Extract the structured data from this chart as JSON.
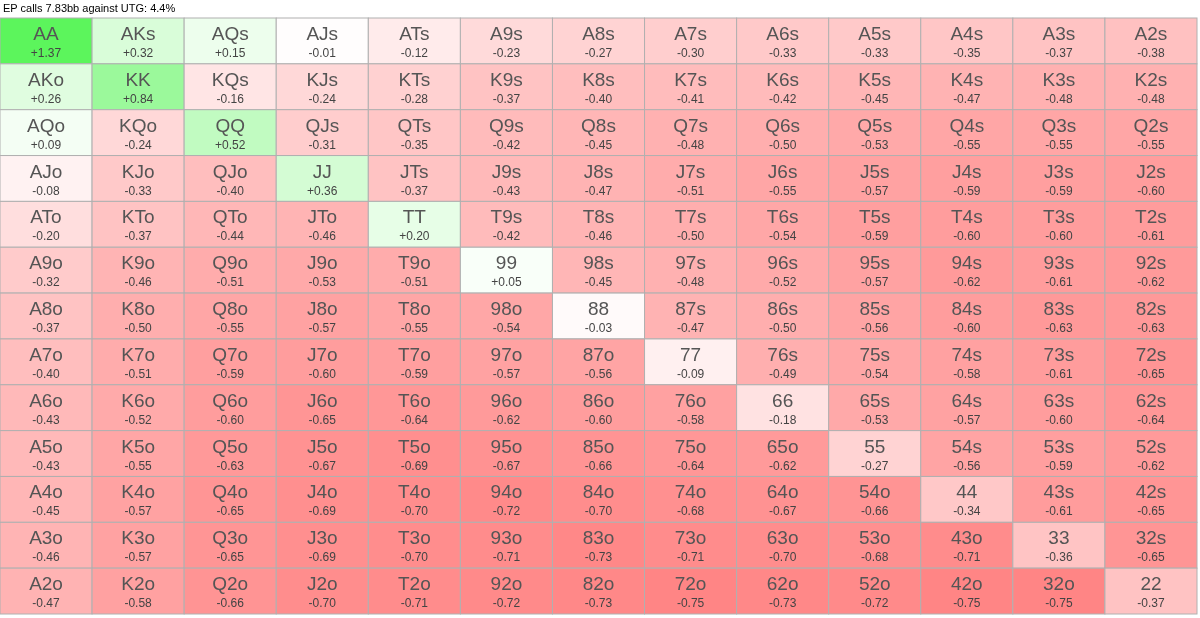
{
  "chart_data": {
    "type": "heatmap",
    "title": "EP calls 7.83bb against UTG: 4.4%",
    "categories": [
      null,
      null,
      null,
      null,
      null,
      null,
      null,
      null,
      null,
      null,
      null,
      null,
      null
    ],
    "y_categories": [
      null,
      null,
      null,
      null,
      null,
      null,
      null,
      null,
      null,
      null,
      null,
      null,
      null
    ],
    "cells": [
      [
        1.37,
        0.32,
        0.15,
        -0.01,
        -0.12,
        -0.23,
        -0.27,
        -0.3,
        -0.33,
        -0.33,
        -0.35,
        -0.37,
        -0.38
      ],
      [
        0.26,
        0.84,
        -0.16,
        -0.24,
        -0.28,
        -0.37,
        -0.4,
        -0.41,
        -0.42,
        -0.45,
        -0.47,
        -0.48,
        -0.48
      ],
      [
        0.09,
        -0.24,
        0.52,
        -0.31,
        -0.35,
        -0.42,
        -0.45,
        -0.48,
        -0.5,
        -0.53,
        -0.55,
        -0.55,
        -0.55
      ],
      [
        -0.08,
        -0.33,
        -0.4,
        0.36,
        -0.37,
        -0.43,
        -0.47,
        -0.51,
        -0.55,
        -0.57,
        -0.59,
        -0.59,
        -0.6
      ],
      [
        -0.2,
        -0.37,
        -0.44,
        -0.46,
        0.2,
        -0.42,
        -0.46,
        -0.5,
        -0.54,
        -0.59,
        -0.6,
        -0.6,
        -0.61
      ],
      [
        -0.32,
        -0.46,
        -0.51,
        -0.53,
        -0.51,
        0.05,
        -0.45,
        -0.48,
        -0.52,
        -0.57,
        -0.62,
        -0.61,
        -0.62
      ],
      [
        -0.37,
        -0.5,
        -0.55,
        -0.57,
        -0.55,
        -0.54,
        -0.03,
        -0.47,
        -0.5,
        -0.56,
        -0.6,
        -0.63,
        -0.63
      ],
      [
        -0.4,
        -0.51,
        -0.59,
        -0.6,
        -0.59,
        -0.57,
        -0.56,
        -0.09,
        -0.49,
        -0.54,
        -0.58,
        -0.61,
        -0.65
      ],
      [
        -0.43,
        -0.52,
        -0.6,
        -0.65,
        -0.64,
        -0.62,
        -0.6,
        -0.58,
        -0.18,
        -0.53,
        -0.57,
        -0.6,
        -0.64
      ],
      [
        -0.43,
        -0.55,
        -0.63,
        -0.67,
        -0.69,
        -0.67,
        -0.66,
        -0.64,
        -0.62,
        -0.27,
        -0.56,
        -0.59,
        -0.62
      ],
      [
        -0.45,
        -0.57,
        -0.65,
        -0.69,
        -0.7,
        -0.72,
        -0.7,
        -0.68,
        -0.67,
        -0.66,
        -0.34,
        -0.61,
        -0.65
      ],
      [
        -0.46,
        -0.57,
        -0.65,
        -0.69,
        -0.7,
        -0.71,
        -0.73,
        -0.71,
        -0.7,
        -0.68,
        -0.71,
        -0.36,
        -0.65
      ],
      [
        -0.47,
        -0.58,
        -0.66,
        -0.7,
        -0.71,
        -0.72,
        -0.73,
        -0.75,
        -0.73,
        -0.72,
        -0.75,
        -0.75,
        -0.37
      ]
    ],
    "cell_labels": [
      [
        "+1.37",
        "+0.32",
        "+0.15",
        "-0.01",
        "-0.12",
        "-0.23",
        "-0.27",
        "-0.30",
        "-0.33",
        "-0.33",
        "-0.35",
        "-0.37",
        "-0.38"
      ],
      [
        "+0.26",
        "+0.84",
        "-0.16",
        "-0.24",
        "-0.28",
        "-0.37",
        "-0.40",
        "-0.41",
        "-0.42",
        "-0.45",
        "-0.47",
        "-0.48",
        "-0.48"
      ],
      [
        "+0.09",
        "-0.24",
        "+0.52",
        "-0.31",
        "-0.35",
        "-0.42",
        "-0.45",
        "-0.48",
        "-0.50",
        "-0.53",
        "-0.55",
        "-0.55",
        "-0.55"
      ],
      [
        "-0.08",
        "-0.33",
        "-0.40",
        "+0.36",
        "-0.37",
        "-0.43",
        "-0.47",
        "-0.51",
        "-0.55",
        "-0.57",
        "-0.59",
        "-0.59",
        "-0.60"
      ],
      [
        "-0.20",
        "-0.37",
        "-0.44",
        "-0.46",
        "+0.20",
        "-0.42",
        "-0.46",
        "-0.50",
        "-0.54",
        "-0.59",
        "-0.60",
        "-0.60",
        "-0.61"
      ],
      [
        "-0.32",
        "-0.46",
        "-0.51",
        "-0.53",
        "-0.51",
        "+0.05",
        "-0.45",
        "-0.48",
        "-0.52",
        "-0.57",
        "-0.62",
        "-0.61",
        "-0.62"
      ],
      [
        "-0.37",
        "-0.50",
        "-0.55",
        "-0.57",
        "-0.55",
        "-0.54",
        "-0.03",
        "-0.47",
        "-0.50",
        "-0.56",
        "-0.60",
        "-0.63",
        "-0.63"
      ],
      [
        "-0.40",
        "-0.51",
        "-0.59",
        "-0.60",
        "-0.59",
        "-0.57",
        "-0.56",
        "-0.09",
        "-0.49",
        "-0.54",
        "-0.58",
        "-0.61",
        "-0.65"
      ],
      [
        "-0.43",
        "-0.52",
        "-0.60",
        "-0.65",
        "-0.64",
        "-0.62",
        "-0.60",
        "-0.58",
        "-0.18",
        "-0.53",
        "-0.57",
        "-0.60",
        "-0.64"
      ],
      [
        "-0.43",
        "-0.55",
        "-0.63",
        "-0.67",
        "-0.69",
        "-0.67",
        "-0.66",
        "-0.64",
        "-0.62",
        "-0.27",
        "-0.56",
        "-0.59",
        "-0.62"
      ],
      [
        "-0.45",
        "-0.57",
        "-0.65",
        "-0.69",
        "-0.70",
        "-0.72",
        "-0.70",
        "-0.68",
        "-0.67",
        "-0.66",
        "-0.34",
        "-0.61",
        "-0.65"
      ],
      [
        "-0.46",
        "-0.57",
        "-0.65",
        "-0.69",
        "-0.70",
        "-0.71",
        "-0.73",
        "-0.71",
        "-0.70",
        "-0.68",
        "-0.71",
        "-0.36",
        "-0.65"
      ],
      [
        "-0.47",
        "-0.58",
        "-0.66",
        "-0.70",
        "-0.71",
        "-0.72",
        "-0.73",
        "-0.75",
        "-0.73",
        "-0.72",
        "-0.75",
        "-0.75",
        "-0.37"
      ]
    ],
    "annotations": [
      "AA",
      "AKs",
      "AQs",
      "AJs",
      "ATs",
      "A9s",
      "A8s",
      "A7s",
      "A6s",
      "A5s",
      "A4s",
      "A3s",
      "A2s",
      "AKo",
      "KK",
      "KQs",
      "KJs",
      "KTs",
      "K9s",
      "K8s",
      "K7s",
      "K6s",
      "K5s",
      "K4s",
      "K3s",
      "K2s",
      "AQo",
      "KQo",
      "QQ",
      "QJs",
      "QTs",
      "Q9s",
      "Q8s",
      "Q7s",
      "Q6s",
      "Q5s",
      "Q4s",
      "Q3s",
      "Q2s",
      "AJo",
      "KJo",
      "QJo",
      "JJ",
      "JTs",
      "J9s",
      "J8s",
      "J7s",
      "J6s",
      "J5s",
      "J4s",
      "J3s",
      "J2s",
      "ATo",
      "KTo",
      "QTo",
      "JTo",
      "TT",
      "T9s",
      "T8s",
      "T7s",
      "T6s",
      "T5s",
      "T4s",
      "T3s",
      "T2s",
      "A9o",
      "K9o",
      "Q9o",
      "J9o",
      "T9o",
      "99",
      "98s",
      "97s",
      "96s",
      "95s",
      "94s",
      "93s",
      "92s",
      "A8o",
      "K8o",
      "Q8o",
      "J8o",
      "T8o",
      "98o",
      "88",
      "87s",
      "86s",
      "85s",
      "84s",
      "83s",
      "82s",
      "A7o",
      "K7o",
      "Q7o",
      "J7o",
      "T7o",
      "97o",
      "87o",
      "77",
      "76s",
      "75s",
      "74s",
      "73s",
      "72s",
      "A6o",
      "K6o",
      "Q6o",
      "J6o",
      "T6o",
      "96o",
      "86o",
      "76o",
      "66",
      "65s",
      "64s",
      "63s",
      "62s",
      "A5o",
      "K5o",
      "Q5o",
      "J5o",
      "T5o",
      "95o",
      "85o",
      "75o",
      "65o",
      "55",
      "54s",
      "53s",
      "52s",
      "A4o",
      "K4o",
      "Q4o",
      "J4o",
      "T4o",
      "94o",
      "84o",
      "74o",
      "64o",
      "54o",
      "44",
      "43s",
      "42s",
      "A3o",
      "K3o",
      "Q3o",
      "J3o",
      "T3o",
      "93o",
      "83o",
      "73o",
      "63o",
      "53o",
      "43o",
      "33",
      "32s",
      "A2o",
      "K2o",
      "Q2o",
      "J2o",
      "T2o",
      "92o",
      "82o",
      "72o",
      "62o",
      "52o",
      "42o",
      "32o",
      "22"
    ]
  }
}
